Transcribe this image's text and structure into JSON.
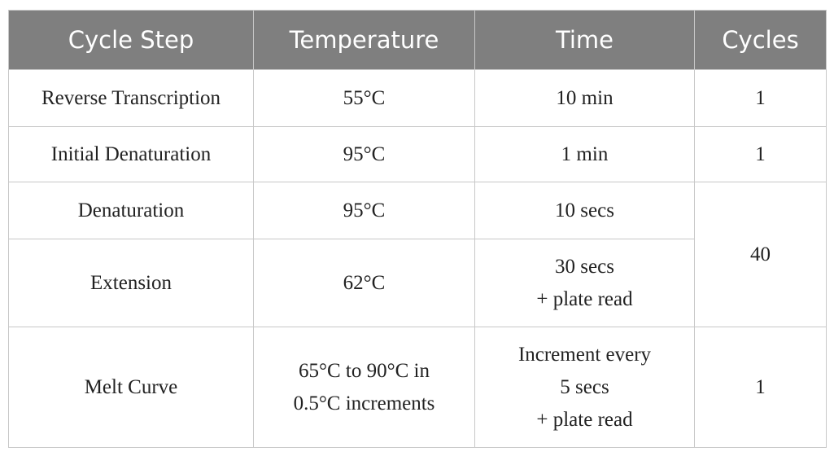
{
  "table": {
    "header": [
      "Cycle Step",
      "Temperature",
      "Time",
      "Cycles"
    ],
    "rows": [
      [
        "Reverse Transcription",
        "55°C",
        "10 min",
        "1"
      ],
      [
        "Initial Denaturation",
        "95°C",
        "1 min",
        "1"
      ],
      [
        "Denaturation",
        "95°C",
        "10 secs",
        "40"
      ],
      [
        "Extension",
        "62°C",
        [
          "30 secs",
          "+ plate read"
        ]
      ],
      [
        "Melt Curve",
        [
          "65°C to 90°C in",
          "0.5°C increments"
        ],
        [
          "Increment every",
          "5 secs",
          "+ plate read"
        ],
        "1"
      ]
    ]
  }
}
